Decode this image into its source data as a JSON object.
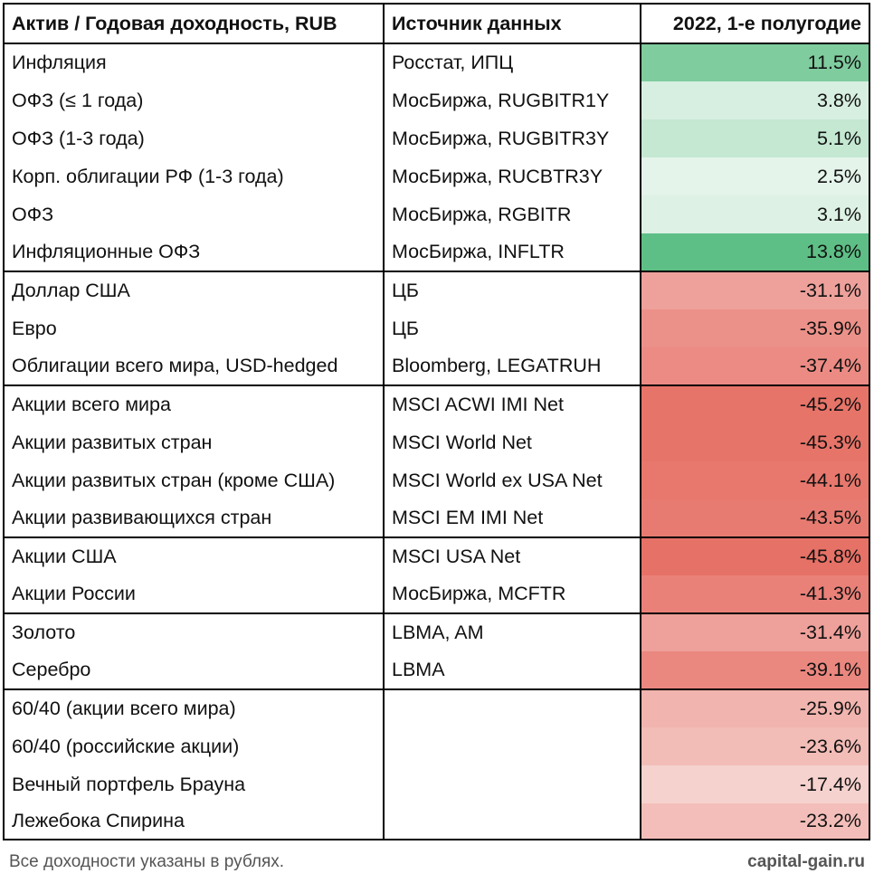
{
  "table": {
    "headers": [
      "Актив / Годовая доходность, RUB",
      "Источник данных",
      "2022, 1-е полугодие"
    ],
    "rows": [
      {
        "asset": "Инфляция",
        "source": "Росстат, ИПЦ",
        "value": "11.5%",
        "color": "#7fcc9e",
        "group_start": false
      },
      {
        "asset": "ОФЗ (≤ 1 года)",
        "source": "МосБиржа, RUGBITR1Y",
        "value": "3.8%",
        "color": "#d7efe0",
        "group_start": false
      },
      {
        "asset": "ОФЗ (1-3 года)",
        "source": "МосБиржа, RUGBITR3Y",
        "value": "5.1%",
        "color": "#c4e8d2",
        "group_start": false
      },
      {
        "asset": "Корп. облигации РФ (1-3 года)",
        "source": "МосБиржа, RUCBTR3Y",
        "value": "2.5%",
        "color": "#e4f4ea",
        "group_start": false
      },
      {
        "asset": "ОФЗ",
        "source": "МосБиржа, RGBITR",
        "value": "3.1%",
        "color": "#ddf1e4",
        "group_start": false
      },
      {
        "asset": "Инфляционные ОФЗ",
        "source": "МосБиржа, INFLTR",
        "value": "13.8%",
        "color": "#5ebf86",
        "group_start": false
      },
      {
        "asset": "Доллар США",
        "source": "ЦБ",
        "value": "-31.1%",
        "color": "#eea19b",
        "group_start": true
      },
      {
        "asset": "Евро",
        "source": "ЦБ",
        "value": "-35.9%",
        "color": "#ec9189",
        "group_start": false
      },
      {
        "asset": "Облигации всего мира, USD-hedged",
        "source": "Bloomberg, LEGATRUH",
        "value": "-37.4%",
        "color": "#eb8b83",
        "group_start": false
      },
      {
        "asset": "Акции всего мира",
        "source": "MSCI ACWI IMI Net",
        "value": "-45.2%",
        "color": "#e77469",
        "group_start": true
      },
      {
        "asset": "Акции развитых стран",
        "source": "MSCI World Net",
        "value": "-45.3%",
        "color": "#e77469",
        "group_start": false
      },
      {
        "asset": "Акции развитых стран (кроме США)",
        "source": "MSCI World ex USA Net",
        "value": "-44.1%",
        "color": "#e8786d",
        "group_start": false
      },
      {
        "asset": "Акции развивающихся стран",
        "source": "MSCI EM IMI Net",
        "value": "-43.5%",
        "color": "#e87b71",
        "group_start": false
      },
      {
        "asset": "Акции США",
        "source": "MSCI USA Net",
        "value": "-45.8%",
        "color": "#e67166",
        "group_start": true
      },
      {
        "asset": "Акции России",
        "source": "МосБиржа, MCFTR",
        "value": "-41.3%",
        "color": "#e98179",
        "group_start": false
      },
      {
        "asset": "Золото",
        "source": "LBMA, AM",
        "value": "-31.4%",
        "color": "#eea09a",
        "group_start": true
      },
      {
        "asset": "Серебро",
        "source": "LBMA",
        "value": "-39.1%",
        "color": "#ea877f",
        "group_start": false
      },
      {
        "asset": "60/40 (акции всего мира)",
        "source": "",
        "value": "-25.9%",
        "color": "#f1b4ae",
        "group_start": true
      },
      {
        "asset": "60/40 (российские акции)",
        "source": "",
        "value": "-23.6%",
        "color": "#f2bcb7",
        "group_start": false
      },
      {
        "asset": "Вечный портфель Брауна",
        "source": "",
        "value": "-17.4%",
        "color": "#f5d2ce",
        "group_start": false
      },
      {
        "asset": "Лежебока Спирина",
        "source": "",
        "value": "-23.2%",
        "color": "#f3beb9",
        "group_start": false
      }
    ]
  },
  "footer": {
    "note": "Все доходности указаны в рублях.",
    "brand": "capital-gain.ru"
  }
}
